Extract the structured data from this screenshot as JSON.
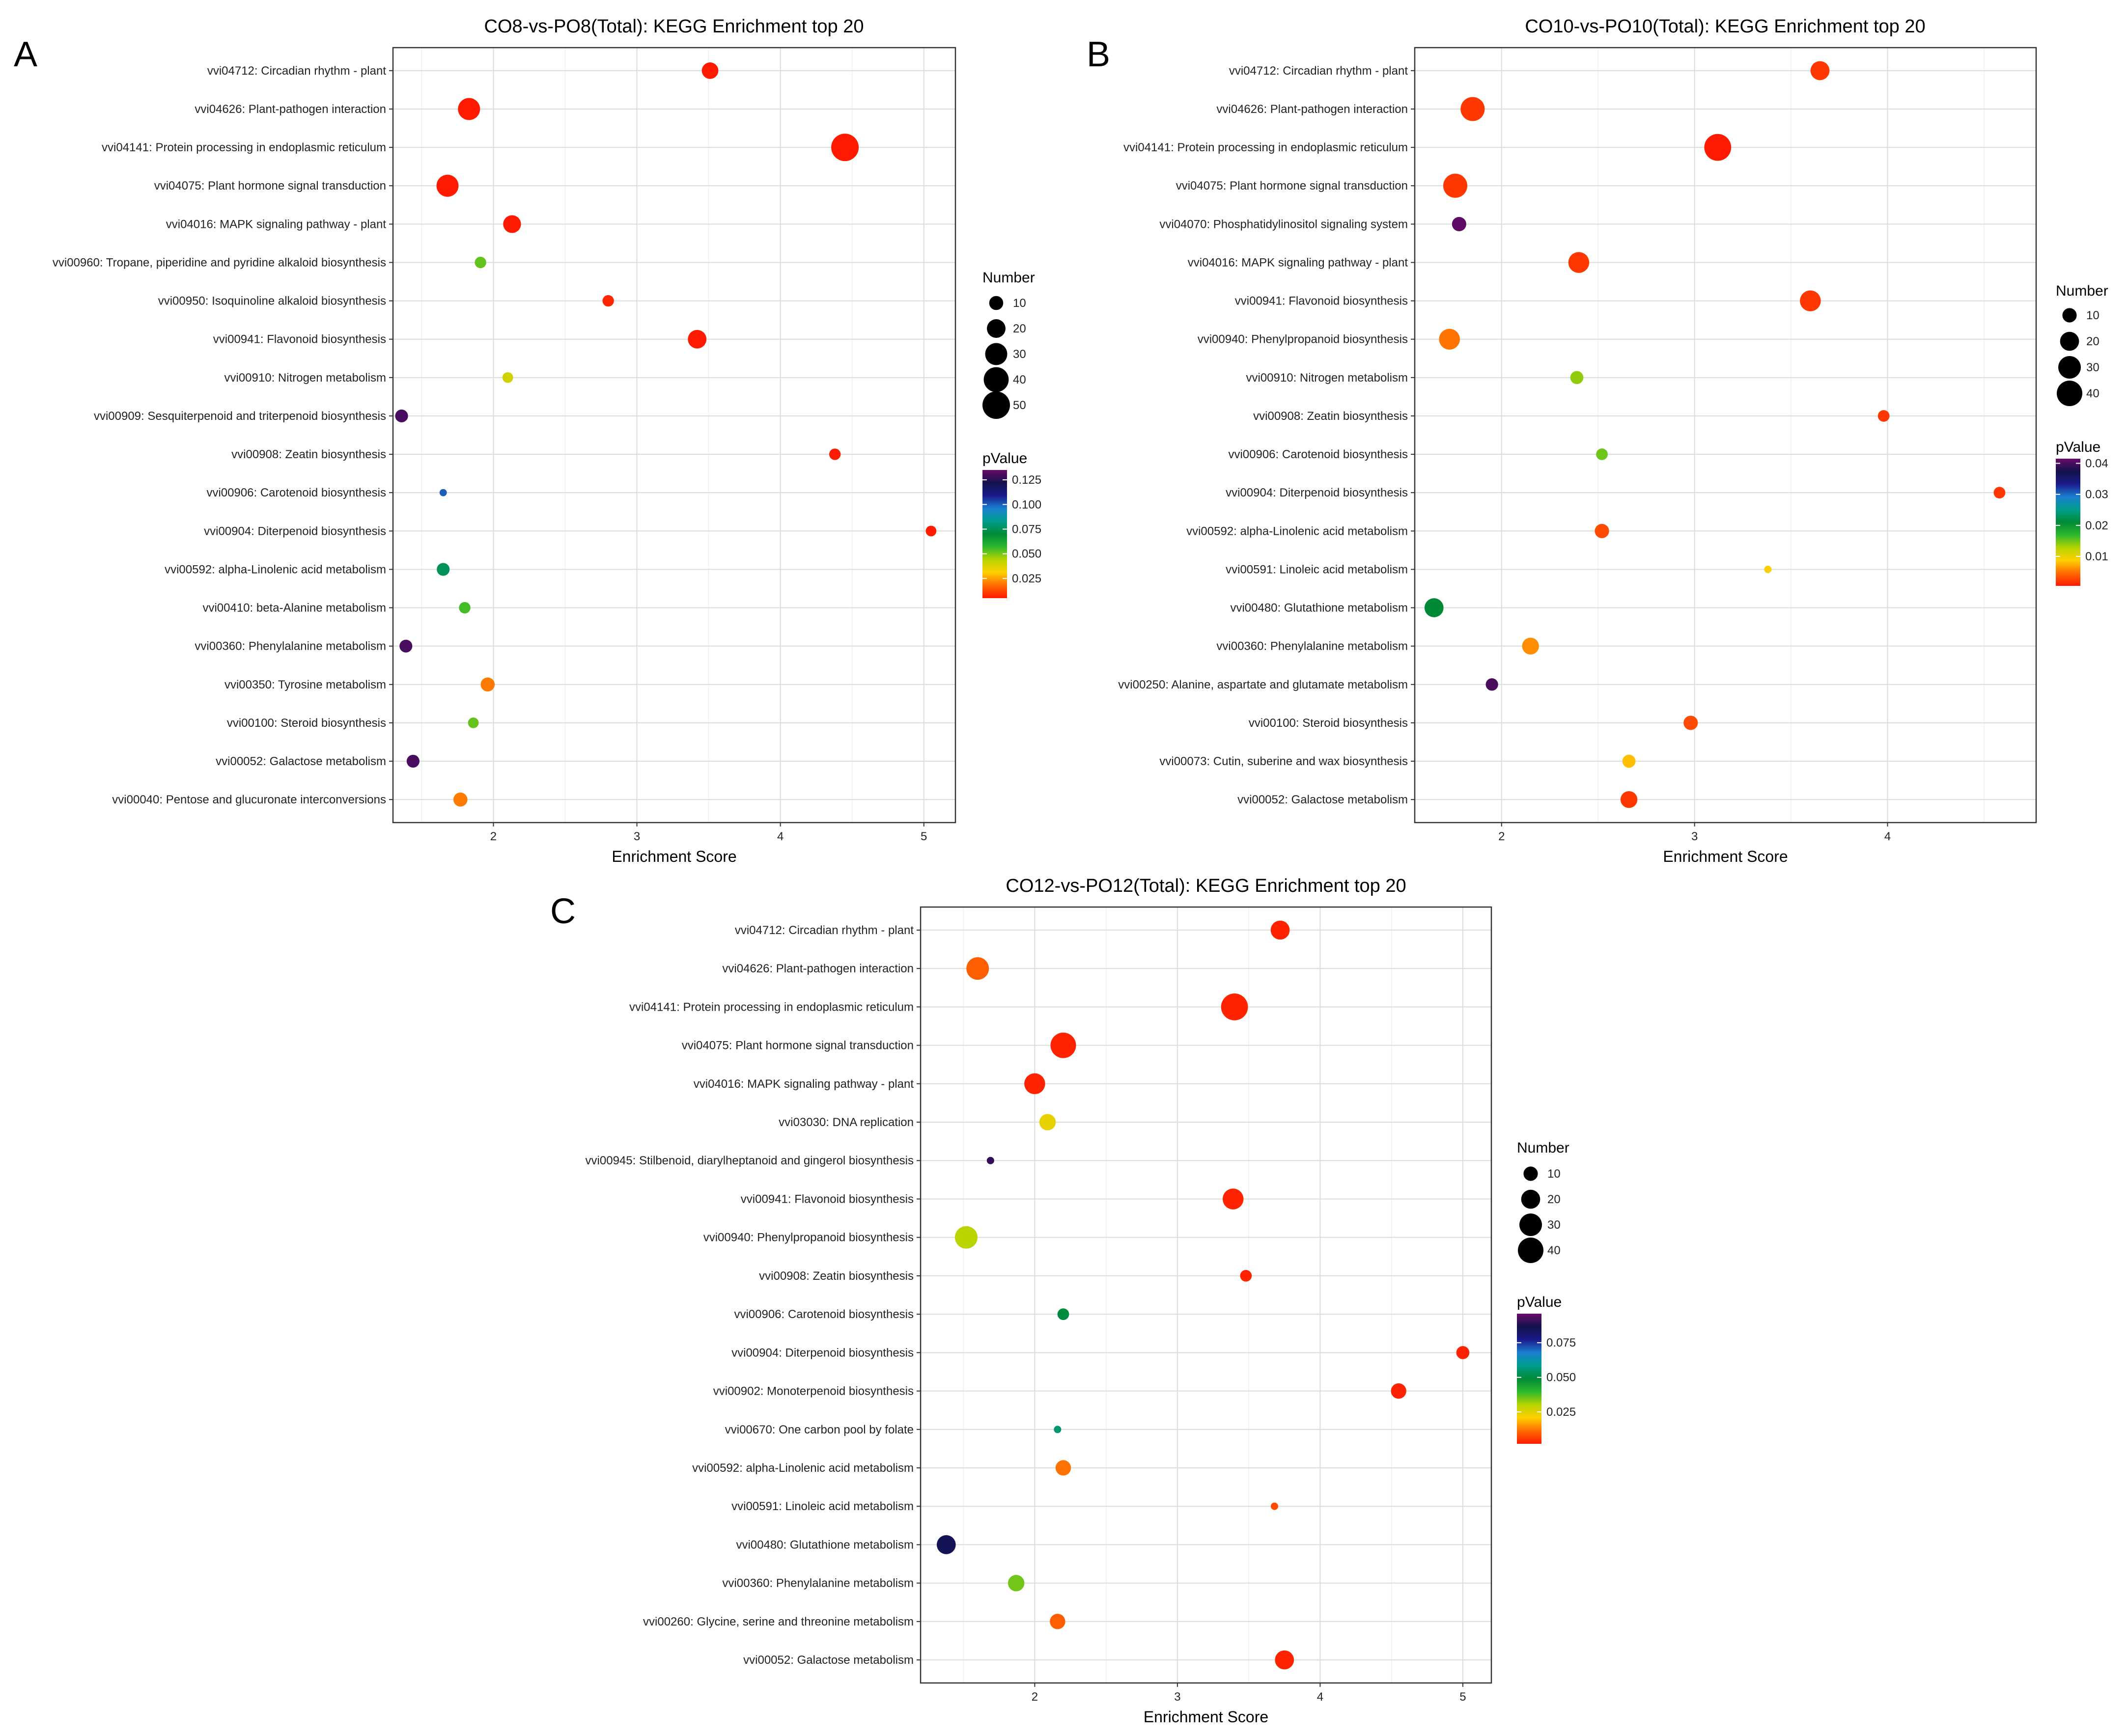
{
  "colors": {
    "pvalue_scale": [
      "#ff1a00",
      "#ff6a00",
      "#ffd000",
      "#b8d400",
      "#2eb82e",
      "#008a36",
      "#009e8c",
      "#1a7fd0",
      "#1a1a8c",
      "#12124a",
      "#6a0a6a"
    ]
  },
  "legend": {
    "size_title": "Number",
    "color_title": "pValue"
  },
  "chart_data": [
    {
      "panel_label": "A",
      "type": "scatter",
      "title": "CO8-vs-PO8(Total): KEGG Enrichment top 20",
      "xlabel": "Enrichment Score",
      "ylabel": "",
      "xlim": [
        1.3,
        5.22
      ],
      "xticks": [
        2,
        3,
        4,
        5
      ],
      "grid": true,
      "size_legend": [
        10,
        20,
        30,
        40,
        50
      ],
      "size_range": [
        4,
        52
      ],
      "color_legend": {
        "ticks": [
          0.125,
          0.1,
          0.075,
          0.05,
          0.025
        ],
        "range": [
          0.005,
          0.135
        ]
      },
      "terms": [
        {
          "label": "vvi04712: Circadian rhythm - plant",
          "x": 3.51,
          "number": 15,
          "pvalue": 0.002
        },
        {
          "label": "vvi04626: Plant-pathogen interaction",
          "x": 1.83,
          "number": 30,
          "pvalue": 0.003
        },
        {
          "label": "vvi04141: Protein processing in endoplasmic reticulum",
          "x": 4.45,
          "number": 50,
          "pvalue": 0.0001
        },
        {
          "label": "vvi04075: Plant hormone signal transduction",
          "x": 1.68,
          "number": 30,
          "pvalue": 0.003
        },
        {
          "label": "vvi04016: MAPK signaling pathway - plant",
          "x": 2.13,
          "number": 18,
          "pvalue": 0.003
        },
        {
          "label": "vvi00960: Tropane, piperidine and pyridine alkaloid biosynthesis",
          "x": 1.91,
          "number": 6,
          "pvalue": 0.052
        },
        {
          "label": "vvi00950: Isoquinoline alkaloid biosynthesis",
          "x": 2.8,
          "number": 6,
          "pvalue": 0.007
        },
        {
          "label": "vvi00941: Flavonoid biosynthesis",
          "x": 3.42,
          "number": 20,
          "pvalue": 0.003
        },
        {
          "label": "vvi00910: Nitrogen metabolism",
          "x": 2.1,
          "number": 5,
          "pvalue": 0.04
        },
        {
          "label": "vvi00909: Sesquiterpenoid and triterpenoid biosynthesis",
          "x": 1.36,
          "number": 8,
          "pvalue": 0.13
        },
        {
          "label": "vvi00908: Zeatin biosynthesis",
          "x": 4.38,
          "number": 6,
          "pvalue": 0.004
        },
        {
          "label": "vvi00906: Carotenoid biosynthesis",
          "x": 1.65,
          "number": 2,
          "pvalue": 0.1
        },
        {
          "label": "vvi00904: Diterpenoid biosynthesis",
          "x": 5.05,
          "number": 5,
          "pvalue": 0.005
        },
        {
          "label": "vvi00592: alpha-Linolenic acid metabolism",
          "x": 1.65,
          "number": 8,
          "pvalue": 0.075
        },
        {
          "label": "vvi00410: beta-Alanine metabolism",
          "x": 1.8,
          "number": 6,
          "pvalue": 0.055
        },
        {
          "label": "vvi00360: Phenylalanine metabolism",
          "x": 1.39,
          "number": 8,
          "pvalue": 0.13
        },
        {
          "label": "vvi00350: Tyrosine metabolism",
          "x": 1.96,
          "number": 10,
          "pvalue": 0.02
        },
        {
          "label": "vvi00100: Steroid biosynthesis",
          "x": 1.86,
          "number": 5,
          "pvalue": 0.052
        },
        {
          "label": "vvi00052: Galactose metabolism",
          "x": 1.44,
          "number": 8,
          "pvalue": 0.13
        },
        {
          "label": "vvi00040: Pentose and glucuronate interconversions",
          "x": 1.77,
          "number": 10,
          "pvalue": 0.02
        }
      ]
    },
    {
      "panel_label": "B",
      "type": "scatter",
      "title": "CO10-vs-PO10(Total): KEGG Enrichment top 20",
      "xlabel": "Enrichment Score",
      "ylabel": "",
      "xlim": [
        1.55,
        4.77
      ],
      "xticks": [
        2,
        3,
        4
      ],
      "grid": true,
      "size_legend": [
        10,
        20,
        30,
        40
      ],
      "size_range": [
        4,
        48
      ],
      "color_legend": {
        "ticks": [
          0.04,
          0.03,
          0.02,
          0.01
        ],
        "range": [
          0.0005,
          0.0415
        ]
      },
      "terms": [
        {
          "label": "vvi04712: Circadian rhythm - plant",
          "x": 3.65,
          "number": 20,
          "pvalue": 0.002
        },
        {
          "label": "vvi04626: Plant-pathogen interaction",
          "x": 1.85,
          "number": 35,
          "pvalue": 0.002
        },
        {
          "label": "vvi04141: Protein processing in endoplasmic reticulum",
          "x": 3.12,
          "number": 45,
          "pvalue": 0.0005
        },
        {
          "label": "vvi04075: Plant hormone signal transduction",
          "x": 1.76,
          "number": 35,
          "pvalue": 0.002
        },
        {
          "label": "vvi04070: Phosphatidylinositol signaling system",
          "x": 1.78,
          "number": 10,
          "pvalue": 0.041
        },
        {
          "label": "vvi04016: MAPK signaling pathway - plant",
          "x": 2.4,
          "number": 25,
          "pvalue": 0.002
        },
        {
          "label": "vvi00941: Flavonoid biosynthesis",
          "x": 3.6,
          "number": 25,
          "pvalue": 0.002
        },
        {
          "label": "vvi00940: Phenylpropanoid biosynthesis",
          "x": 1.73,
          "number": 25,
          "pvalue": 0.005
        },
        {
          "label": "vvi00910: Nitrogen metabolism",
          "x": 2.39,
          "number": 8,
          "pvalue": 0.014
        },
        {
          "label": "vvi00908: Zeatin biosynthesis",
          "x": 3.98,
          "number": 6,
          "pvalue": 0.002
        },
        {
          "label": "vvi00906: Carotenoid biosynthesis",
          "x": 2.52,
          "number": 6,
          "pvalue": 0.015
        },
        {
          "label": "vvi00904: Diterpenoid biosynthesis",
          "x": 4.58,
          "number": 6,
          "pvalue": 0.002
        },
        {
          "label": "vvi00592: alpha-Linolenic acid metabolism",
          "x": 2.52,
          "number": 10,
          "pvalue": 0.003
        },
        {
          "label": "vvi00591: Linoleic acid metabolism",
          "x": 3.38,
          "number": 2,
          "pvalue": 0.009
        },
        {
          "label": "vvi00480: Glutathione metabolism",
          "x": 1.65,
          "number": 20,
          "pvalue": 0.021
        },
        {
          "label": "vvi00360: Phenylalanine metabolism",
          "x": 2.15,
          "number": 15,
          "pvalue": 0.006
        },
        {
          "label": "vvi00250: Alanine, aspartate and glutamate metabolism",
          "x": 1.95,
          "number": 7,
          "pvalue": 0.04
        },
        {
          "label": "vvi00100: Steroid biosynthesis",
          "x": 2.98,
          "number": 10,
          "pvalue": 0.003
        },
        {
          "label": "vvi00073: Cutin, suberine and wax biosynthesis",
          "x": 2.66,
          "number": 8,
          "pvalue": 0.008
        },
        {
          "label": "vvi00052: Galactose metabolism",
          "x": 2.66,
          "number": 15,
          "pvalue": 0.002
        }
      ]
    },
    {
      "panel_label": "C",
      "type": "scatter",
      "title": "CO12-vs-PO12(Total): KEGG Enrichment top 20",
      "xlabel": "Enrichment Score",
      "ylabel": "",
      "xlim": [
        1.2,
        5.2
      ],
      "xticks": [
        2,
        3,
        4,
        5
      ],
      "grid": true,
      "size_legend": [
        10,
        20,
        30,
        40
      ],
      "size_range": [
        4,
        48
      ],
      "color_legend": {
        "ticks": [
          0.075,
          0.05,
          0.025
        ],
        "range": [
          0.002,
          0.096
        ]
      },
      "terms": [
        {
          "label": "vvi04712: Circadian rhythm - plant",
          "x": 3.72,
          "number": 20,
          "pvalue": 0.003
        },
        {
          "label": "vvi04626: Plant-pathogen interaction",
          "x": 1.6,
          "number": 30,
          "pvalue": 0.01
        },
        {
          "label": "vvi04141: Protein processing in endoplasmic reticulum",
          "x": 3.4,
          "number": 45,
          "pvalue": 0.003
        },
        {
          "label": "vvi04075: Plant hormone signal transduction",
          "x": 2.2,
          "number": 40,
          "pvalue": 0.003
        },
        {
          "label": "vvi04016: MAPK signaling pathway - plant",
          "x": 2.0,
          "number": 25,
          "pvalue": 0.003
        },
        {
          "label": "vvi03030: DNA replication",
          "x": 2.09,
          "number": 14,
          "pvalue": 0.024
        },
        {
          "label": "vvi00945: Stilbenoid, diarylheptanoid and gingerol biosynthesis",
          "x": 1.69,
          "number": 2,
          "pvalue": 0.09
        },
        {
          "label": "vvi00941: Flavonoid biosynthesis",
          "x": 3.39,
          "number": 25,
          "pvalue": 0.003
        },
        {
          "label": "vvi00940: Phenylpropanoid biosynthesis",
          "x": 1.52,
          "number": 30,
          "pvalue": 0.03
        },
        {
          "label": "vvi00908: Zeatin biosynthesis",
          "x": 3.48,
          "number": 6,
          "pvalue": 0.003
        },
        {
          "label": "vvi00906: Carotenoid biosynthesis",
          "x": 2.2,
          "number": 6,
          "pvalue": 0.05
        },
        {
          "label": "vvi00904: Diterpenoid biosynthesis",
          "x": 5.0,
          "number": 8,
          "pvalue": 0.003
        },
        {
          "label": "vvi00902: Monoterpenoid biosynthesis",
          "x": 4.55,
          "number": 12,
          "pvalue": 0.003
        },
        {
          "label": "vvi00670: One carbon pool by folate",
          "x": 2.16,
          "number": 2,
          "pvalue": 0.055
        },
        {
          "label": "vvi00592: alpha-Linolenic acid metabolism",
          "x": 2.2,
          "number": 12,
          "pvalue": 0.012
        },
        {
          "label": "vvi00591: Linoleic acid metabolism",
          "x": 3.68,
          "number": 2,
          "pvalue": 0.008
        },
        {
          "label": "vvi00480: Glutathione metabolism",
          "x": 1.38,
          "number": 20,
          "pvalue": 0.085
        },
        {
          "label": "vvi00360: Phenylalanine metabolism",
          "x": 1.87,
          "number": 14,
          "pvalue": 0.035
        },
        {
          "label": "vvi00260: Glycine, serine and threonine metabolism",
          "x": 2.16,
          "number": 12,
          "pvalue": 0.01
        },
        {
          "label": "vvi00052: Galactose metabolism",
          "x": 3.75,
          "number": 20,
          "pvalue": 0.003
        }
      ]
    }
  ]
}
